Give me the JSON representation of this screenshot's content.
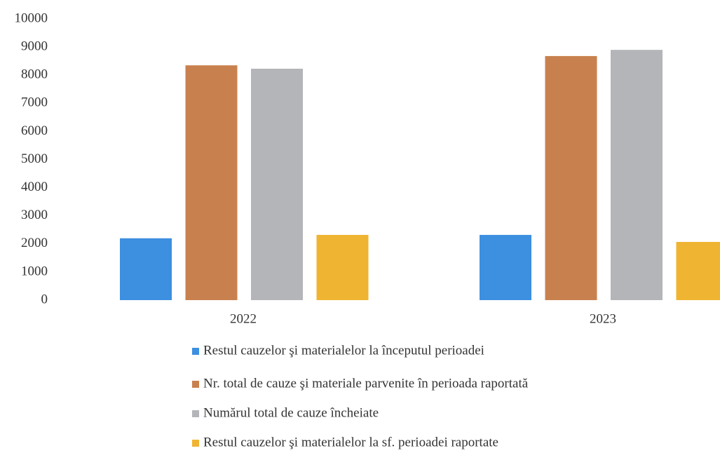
{
  "chart_data": {
    "type": "bar",
    "categories": [
      "2022",
      "2023"
    ],
    "series": [
      {
        "name": "Restul cauzelor şi materialelor la începutul perioadei",
        "color": "#3d8fe0",
        "values": [
          2200,
          2320
        ]
      },
      {
        "name": "Nr. total de cauze şi materiale parvenite în perioada raportată",
        "color": "#c8814e",
        "values": [
          8350,
          8680
        ]
      },
      {
        "name": "Numărul total de cauze încheiate",
        "color": "#b3b5b9",
        "values": [
          8230,
          8900
        ]
      },
      {
        "name": "Restul cauzelor şi materialelor la sf. perioadei raportate",
        "color": "#f0b433",
        "values": [
          2320,
          2070
        ]
      }
    ],
    "ylim": [
      0,
      10000
    ],
    "yticks": [
      0,
      1000,
      2000,
      3000,
      4000,
      5000,
      6000,
      7000,
      8000,
      9000,
      10000
    ],
    "grid": false
  }
}
